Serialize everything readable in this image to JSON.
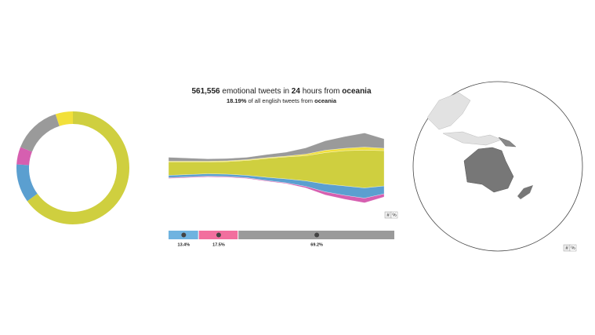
{
  "header": {
    "count": "561,556",
    "text1": "emotional tweets in",
    "hours": "24",
    "text2": "hours from",
    "region": "oceania",
    "share": "18.19%",
    "text3": "of all english tweets from",
    "region2": "oceania"
  },
  "toggle_stream": {
    "count": "#",
    "percent": "%"
  },
  "toggle_map": {
    "count": "#",
    "percent": "%"
  },
  "chart_data": [
    {
      "type": "pie",
      "donut": true,
      "values": [
        5,
        65,
        11,
        5,
        14
      ],
      "colors": [
        "#f2e03a",
        "#cfcf3f",
        "#5b9fd0",
        "#d65fb0",
        "#9a9a9a"
      ]
    },
    {
      "type": "streamgraph",
      "series": [
        {
          "color": "#d65fb0",
          "values": [
            1,
            1,
            1,
            1,
            1,
            1,
            1,
            2,
            4,
            5,
            6,
            4
          ]
        },
        {
          "color": "#5b9fd0",
          "values": [
            3,
            3,
            3,
            3,
            3,
            4,
            5,
            7,
            10,
            12,
            13,
            10
          ]
        },
        {
          "color": "#cfcf3f",
          "values": [
            17,
            16,
            15,
            16,
            19,
            24,
            28,
            32,
            40,
            45,
            48,
            45
          ]
        },
        {
          "color": "#f2e03a",
          "values": [
            1,
            1,
            1,
            1,
            1,
            1,
            1,
            2,
            3,
            3,
            4,
            3
          ]
        },
        {
          "color": "#9a9a9a",
          "values": [
            5,
            4,
            3,
            3,
            3,
            4,
            5,
            8,
            12,
            15,
            18,
            12
          ]
        }
      ]
    },
    {
      "type": "bar",
      "orientation": "stacked-horizontal",
      "values": [
        13.4,
        17.5,
        69.2
      ],
      "value_labels": [
        "13.4%",
        "17.5%",
        "69.2%"
      ],
      "colors": [
        "#6fb3e0",
        "#f26f9e",
        "#9a9a9a"
      ]
    }
  ]
}
